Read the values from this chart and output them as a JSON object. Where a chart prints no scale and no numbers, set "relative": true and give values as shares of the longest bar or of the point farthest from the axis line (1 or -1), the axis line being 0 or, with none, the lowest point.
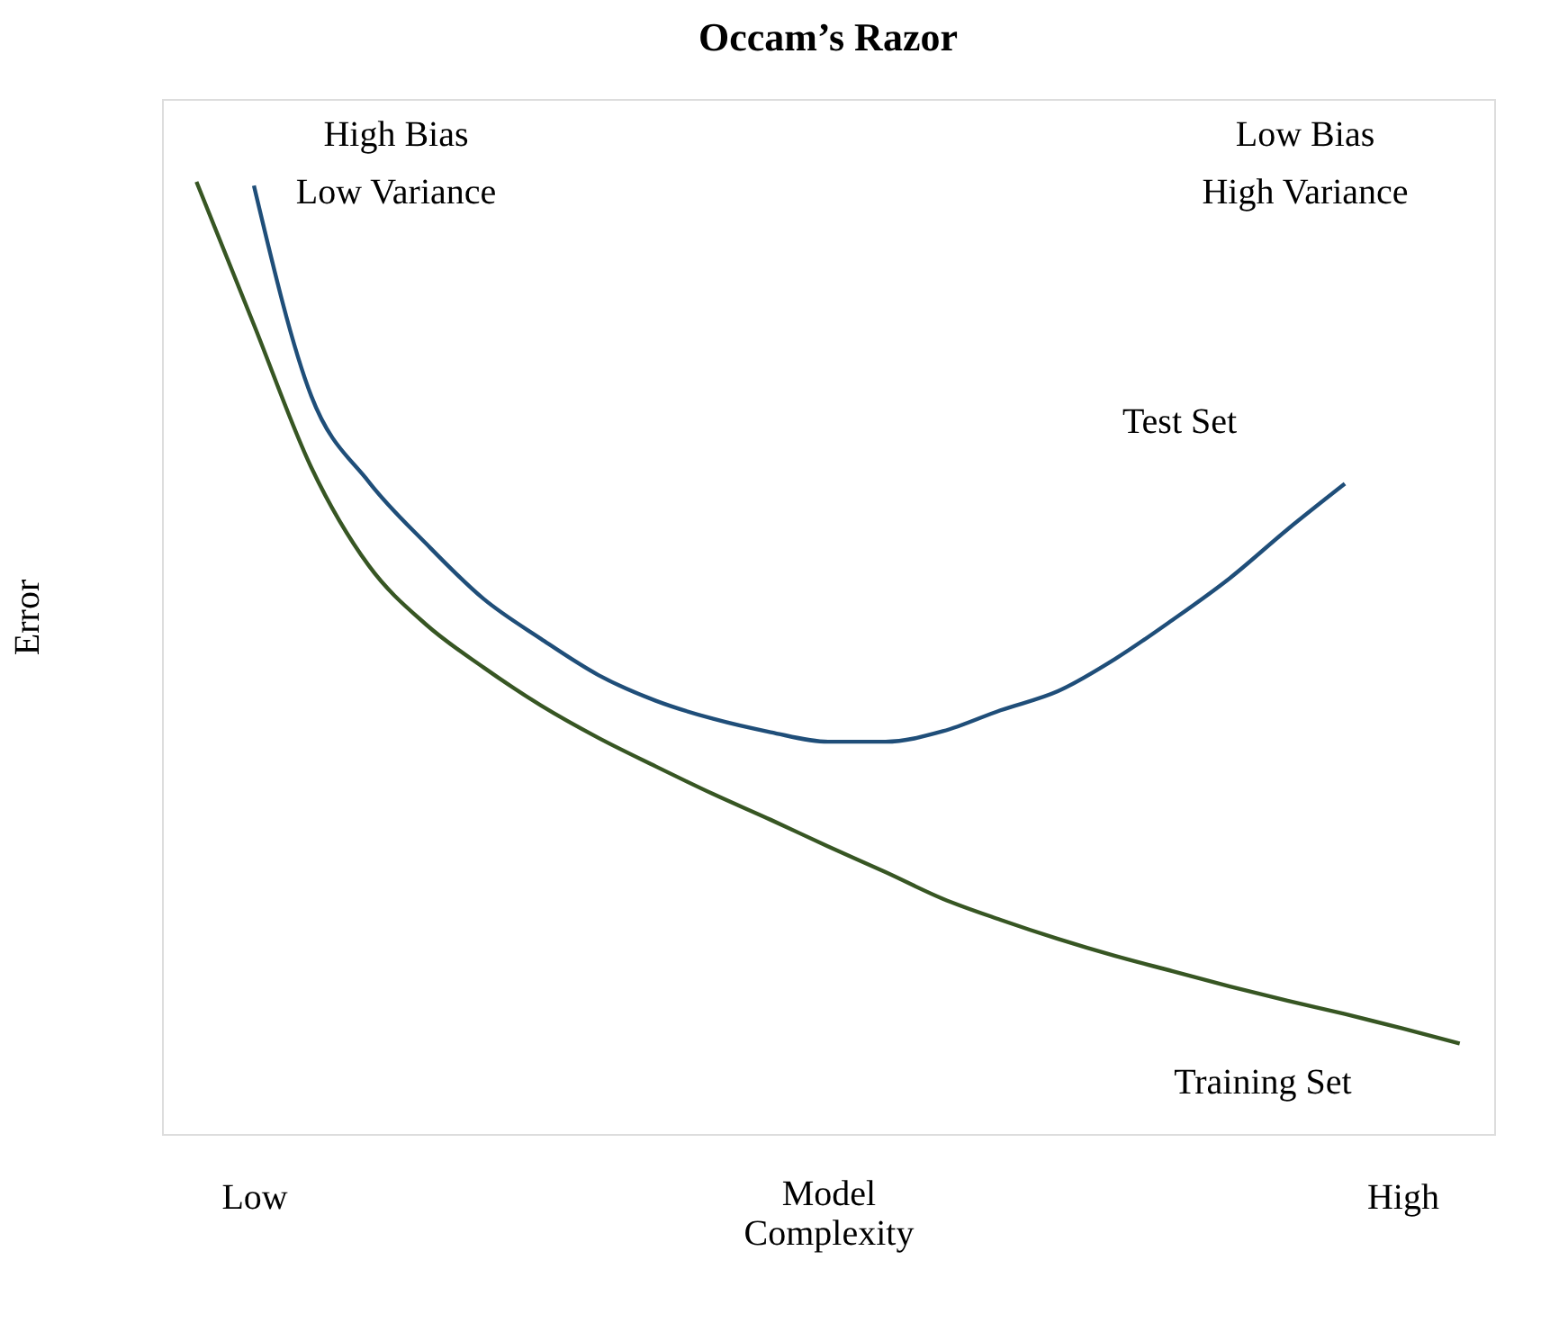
{
  "chart_data": {
    "type": "line",
    "title": "Occam’s Razor",
    "xlabel": "Model Complexity",
    "ylabel": "Error",
    "relative": true,
    "categories": [
      null,
      "Low",
      null,
      null,
      null,
      null,
      null,
      null,
      null,
      null,
      null,
      null,
      null,
      null,
      null,
      null,
      null,
      null,
      null,
      null,
      null,
      "High",
      null
    ],
    "annotations": [
      "High Bias\nLow Variance",
      "Low Bias\nHigh Variance"
    ],
    "grid": false,
    "marker": "none",
    "line_style": "solid",
    "series": [
      {
        "name": "Test Set",
        "color": "#1f4e79",
        "values": [
          null,
          0.996,
          0.775,
          0.685,
          0.62,
          0.562,
          0.52,
          0.482,
          0.455,
          0.436,
          0.422,
          0.412,
          0.412,
          0.423,
          0.445,
          0.465,
          0.499,
          0.54,
          0.584,
          0.635,
          0.683,
          null,
          null
        ]
      },
      {
        "name": "Training Set",
        "color": "#375623",
        "values": [
          1.0,
          0.85,
          0.7,
          0.597,
          0.535,
          0.49,
          0.45,
          0.416,
          0.386,
          0.357,
          0.33,
          0.302,
          0.275,
          0.247,
          0.225,
          0.205,
          0.187,
          0.171,
          0.155,
          0.14,
          0.126,
          0.111,
          0.095
        ]
      }
    ]
  }
}
